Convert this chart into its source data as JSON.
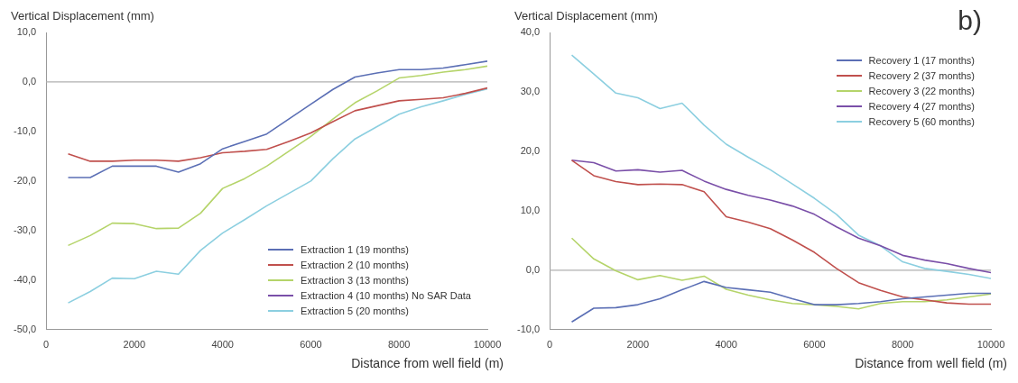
{
  "chart_data": [
    {
      "type": "line",
      "ylabel": "Vertical Displacement (mm)",
      "xlabel": "Distance from well field (m)",
      "x": [
        500,
        1000,
        1500,
        2000,
        2500,
        3000,
        3500,
        4000,
        4500,
        5000,
        5500,
        6000,
        6500,
        7000,
        7500,
        8000,
        8500,
        9000,
        9500,
        10000
      ],
      "xlim": [
        0,
        10000
      ],
      "xticks": [
        0,
        2000,
        4000,
        6000,
        8000,
        10000
      ],
      "ylim": [
        -50,
        10
      ],
      "yticks": [
        {
          "value": -50,
          "label": "-50,0"
        },
        {
          "value": -40,
          "label": "-40,0"
        },
        {
          "value": -30,
          "label": "-30,0"
        },
        {
          "value": -20,
          "label": "-20,0"
        },
        {
          "value": -10,
          "label": "-10,0"
        },
        {
          "value": 0,
          "label": "0,0"
        },
        {
          "value": 10,
          "label": "10,0"
        }
      ],
      "grid": false,
      "legend": "bottom right",
      "marker": "none",
      "line_style": "solid",
      "ref_lines": [
        {
          "axis": "y",
          "value": 0,
          "color": "#b0b0b0"
        }
      ],
      "series": [
        {
          "name": "Extraction 1 (19 months)",
          "color": "#5b6fb5",
          "values": [
            -19.3,
            -19.3,
            -17,
            -17,
            -17,
            -18.2,
            -16.5,
            -13.5,
            -12,
            -10.5,
            -7.5,
            -4.5,
            -1.5,
            1,
            1.8,
            2.5,
            2.5,
            2.8,
            3.5,
            4.2
          ]
        },
        {
          "name": "Extraction 2 (10 months)",
          "color": "#c0504d",
          "values": [
            -14.5,
            -16,
            -16,
            -15.8,
            -15.8,
            -16,
            -15.3,
            -14.3,
            -14,
            -13.6,
            -12,
            -10.3,
            -8,
            -5.8,
            -4.8,
            -3.8,
            -3.5,
            -3.2,
            -2.3,
            -1.2
          ]
        },
        {
          "name": "Extraction 3  (13 months)",
          "color": "#b5d46a",
          "values": [
            -33,
            -31,
            -28.5,
            -28.6,
            -29.6,
            -29.5,
            -26.5,
            -21.5,
            -19.5,
            -17,
            -14,
            -11,
            -7.5,
            -4.2,
            -1.8,
            0.8,
            1.3,
            2,
            2.5,
            3.2
          ]
        },
        {
          "name": "Extraction 4 (10 months) No SAR Data",
          "color": "#7a4fa8",
          "values": [
            null,
            null,
            null,
            null,
            null,
            null,
            null,
            null,
            null,
            null,
            null,
            null,
            null,
            null,
            null,
            null,
            null,
            null,
            null,
            null
          ]
        },
        {
          "name": "Extraction 5 (20 months)",
          "color": "#8ccfe0",
          "values": [
            -44.6,
            -42.3,
            -39.6,
            -39.7,
            -38.2,
            -38.8,
            -34,
            -30.5,
            -27.8,
            -25,
            -22.5,
            -20,
            -15.5,
            -11.5,
            -9,
            -6.5,
            -5,
            -3.8,
            -2.5,
            -1.4
          ]
        }
      ]
    },
    {
      "type": "line",
      "ylabel": "Vertical Displacement (mm)",
      "xlabel": "Distance from well field (m)",
      "annotations": [
        "b)"
      ],
      "x": [
        500,
        1000,
        1500,
        2000,
        2500,
        3000,
        3500,
        4000,
        4500,
        5000,
        5500,
        6000,
        6500,
        7000,
        7500,
        8000,
        8500,
        9000,
        9500,
        10000
      ],
      "xlim": [
        0,
        10000
      ],
      "xticks": [
        0,
        2000,
        4000,
        6000,
        8000,
        10000
      ],
      "ylim": [
        -10,
        40
      ],
      "yticks": [
        {
          "value": -10,
          "label": "-10,0"
        },
        {
          "value": 0,
          "label": "0,0"
        },
        {
          "value": 10,
          "label": "10,0"
        },
        {
          "value": 20,
          "label": "20,0"
        },
        {
          "value": 30,
          "label": "30,0"
        },
        {
          "value": 40,
          "label": "40,0"
        }
      ],
      "grid": false,
      "legend": "top right",
      "marker": "none",
      "line_style": "solid",
      "ref_lines": [
        {
          "axis": "y",
          "value": 0,
          "color": "#b0b0b0"
        }
      ],
      "series": [
        {
          "name": "Recovery 1 (17 months)",
          "color": "#5b6fb5",
          "values": [
            -8.7,
            -6.4,
            -6.3,
            -5.8,
            -4.8,
            -3.3,
            -1.9,
            -2.9,
            -3.3,
            -3.7,
            -4.8,
            -5.8,
            -5.8,
            -5.6,
            -5.3,
            -4.8,
            -4.5,
            -4.2,
            -3.9,
            -3.9
          ]
        },
        {
          "name": "Recovery 2 (37 months)",
          "color": "#c0504d",
          "values": [
            18.5,
            15.9,
            14.9,
            14.4,
            14.5,
            14.4,
            13.2,
            9,
            8.1,
            7,
            5.1,
            3,
            0.3,
            -2.1,
            -3.4,
            -4.5,
            -5,
            -5.5,
            -5.7,
            -5.7
          ]
        },
        {
          "name": "Recovery 3 (22 months)",
          "color": "#b5d46a",
          "values": [
            5.4,
            1.9,
            -0.1,
            -1.6,
            -0.9,
            -1.7,
            -1,
            -3.2,
            -4.2,
            -5,
            -5.6,
            -5.8,
            -6.1,
            -6.5,
            -5.6,
            -5.3,
            -5.3,
            -5,
            -4.5,
            -4
          ]
        },
        {
          "name": "Recovery 4 (27 months)",
          "color": "#7a4fa8",
          "values": [
            18.5,
            18.1,
            16.7,
            16.9,
            16.5,
            16.8,
            15,
            13.6,
            12.6,
            11.8,
            10.8,
            9.4,
            7.3,
            5.4,
            4.1,
            2.5,
            1.7,
            1.1,
            0.3,
            -0.4
          ]
        },
        {
          "name": "Recovery 5 (60 months)",
          "color": "#8ccfe0",
          "values": [
            36.2,
            33,
            29.8,
            29,
            27.2,
            28.1,
            24.4,
            21.2,
            19,
            16.9,
            14.5,
            12.1,
            9.4,
            5.9,
            4.1,
            1.4,
            0.3,
            -0.2,
            -0.7,
            -1.4
          ]
        }
      ]
    }
  ]
}
